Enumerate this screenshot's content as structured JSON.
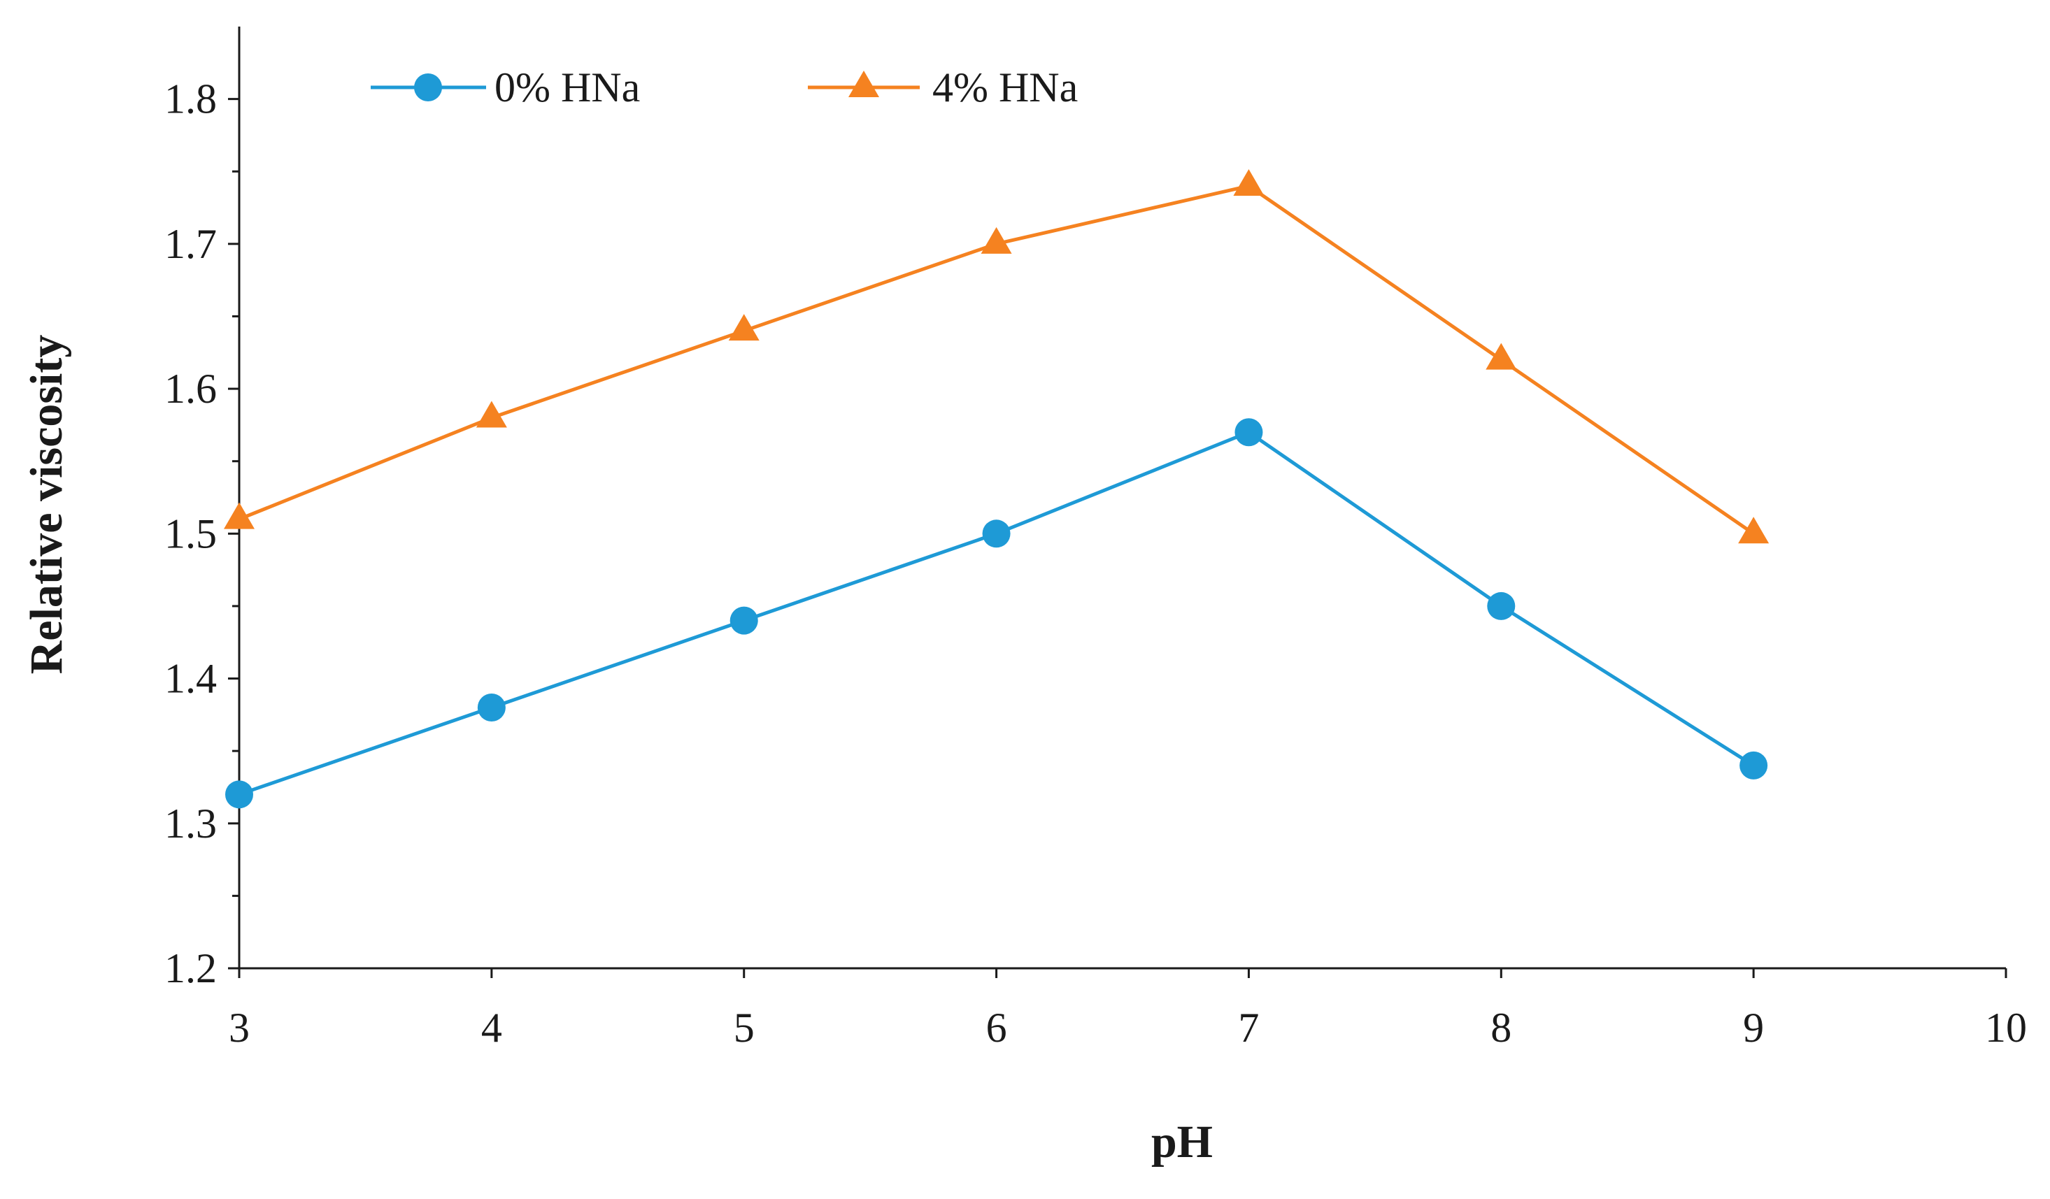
{
  "chart_data": {
    "type": "line",
    "title": "",
    "xlabel": "pH",
    "ylabel": "Relative viscosity",
    "xlim": [
      3,
      10
    ],
    "ylim": [
      1.2,
      1.85
    ],
    "x_ticks": [
      3,
      4,
      5,
      6,
      7,
      8,
      9,
      10
    ],
    "y_ticks": [
      "1.2",
      "1.3",
      "1.4",
      "1.5",
      "1.6",
      "1.7",
      "1.8"
    ],
    "x": [
      3,
      4,
      5,
      6,
      7,
      8,
      9
    ],
    "series": [
      {
        "name": "0% HNa",
        "marker": "circle",
        "color": "#1E9AD6",
        "values": [
          1.32,
          1.38,
          1.44,
          1.5,
          1.57,
          1.45,
          1.34
        ]
      },
      {
        "name": "4% HNa",
        "marker": "triangle",
        "color": "#F58220",
        "values": [
          1.51,
          1.58,
          1.64,
          1.7,
          1.74,
          1.62,
          1.5
        ]
      }
    ],
    "legend_position": "top-left",
    "grid": false
  }
}
